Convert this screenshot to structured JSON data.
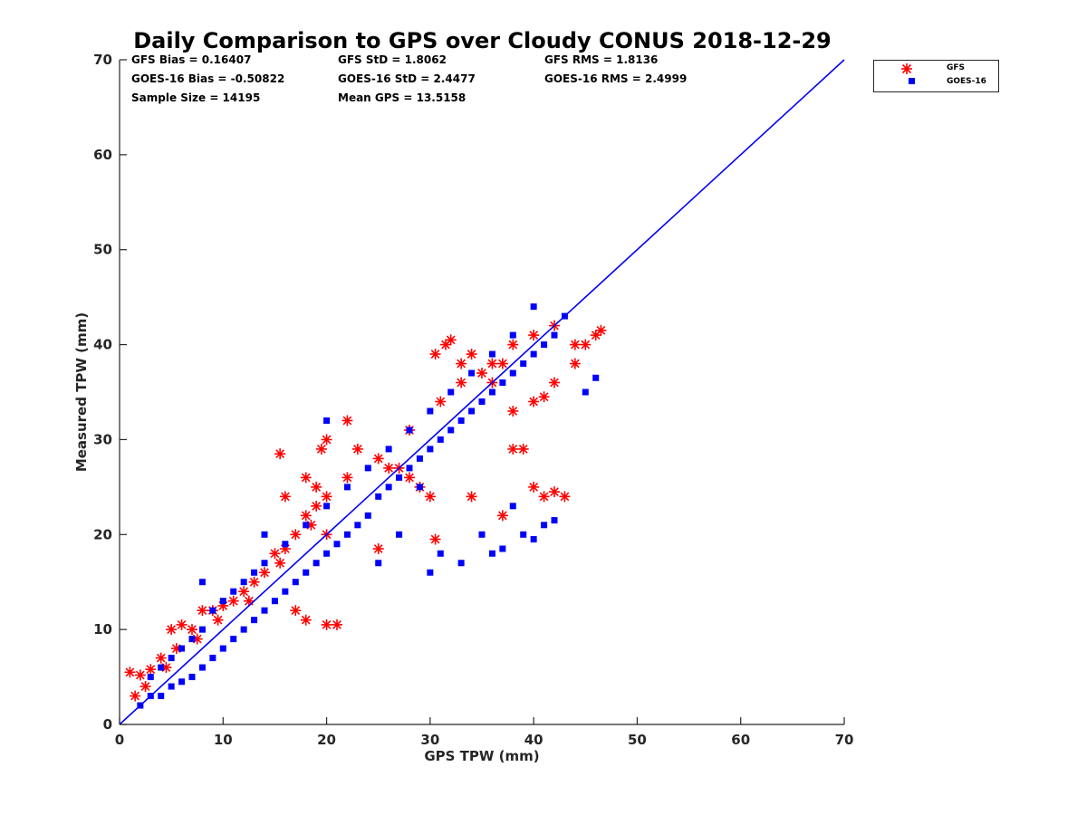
{
  "chart_data": {
    "type": "scatter",
    "title": "Daily Comparison to GPS over Cloudy CONUS 2018-12-29",
    "xlabel": "GPS TPW (mm)",
    "ylabel": "Measured TPW (mm)",
    "xlim": [
      0,
      70
    ],
    "ylim": [
      0,
      70
    ],
    "xticks": [
      "0",
      "10",
      "20",
      "30",
      "40",
      "50",
      "60",
      "70"
    ],
    "yticks": [
      "0",
      "10",
      "20",
      "30",
      "40",
      "50",
      "60",
      "70"
    ],
    "grid": false,
    "legend_position": "outside-top-right",
    "reference_line": {
      "x": [
        0,
        70
      ],
      "y": [
        0,
        70
      ],
      "color": "#0000ff"
    },
    "stats": {
      "gfs_bias": "GFS Bias = 0.16407",
      "gfs_std": "GFS StD = 1.8062",
      "gfs_rms": "GFS RMS = 1.8136",
      "goes_bias": "GOES-16 Bias = -0.50822",
      "goes_std": "GOES-16 StD = 2.4477",
      "goes_rms": "GOES-16 RMS = 2.4999",
      "sample_size": "Sample Size = 14195",
      "mean_gps": "Mean GPS = 13.5158"
    },
    "series": [
      {
        "name": "GFS",
        "marker": "asterisk",
        "color": "#ff0000",
        "x": [
          1,
          2,
          3,
          4,
          5,
          6,
          7,
          8,
          9,
          10,
          11,
          12,
          13,
          14,
          15,
          16,
          17,
          18,
          19,
          20,
          1.5,
          2.5,
          4.5,
          5.5,
          7.5,
          9.5,
          12.5,
          15.5,
          18.5,
          22,
          25,
          28,
          31,
          33,
          36,
          38,
          40,
          42,
          44,
          46,
          15.5,
          16,
          18,
          19,
          19.5,
          20,
          20,
          22,
          23,
          25,
          26,
          27,
          28,
          29,
          30,
          30.5,
          31.5,
          32,
          33,
          34,
          35,
          36,
          37,
          38,
          39,
          40,
          41,
          42,
          43,
          44,
          45,
          46.5,
          30.5,
          34,
          37,
          38,
          40,
          41,
          42,
          20,
          21,
          18,
          17
        ],
        "y": [
          5.5,
          5.2,
          5.8,
          7,
          10,
          10.5,
          10,
          12,
          12,
          12.5,
          13,
          14,
          15,
          16,
          18,
          18.5,
          20,
          22,
          23,
          24,
          3,
          4,
          6,
          8,
          9,
          11,
          13,
          17,
          21,
          26,
          28,
          31,
          34,
          36,
          38,
          40,
          41,
          42,
          40,
          41,
          28.5,
          24,
          26,
          25,
          29,
          30,
          20,
          32,
          29,
          18.5,
          27,
          27,
          26,
          25,
          24,
          39,
          40,
          40.5,
          38,
          39,
          37,
          36,
          38,
          29,
          29,
          25,
          24,
          24.5,
          24,
          38,
          40,
          41.5,
          19.5,
          24,
          22,
          33,
          34,
          34.5,
          36,
          10.5,
          10.5,
          11,
          12
        ]
      },
      {
        "name": "GOES-16",
        "marker": "square",
        "color": "#0000ff",
        "x": [
          2,
          3,
          4,
          5,
          6,
          7,
          8,
          9,
          10,
          11,
          12,
          13,
          14,
          15,
          16,
          17,
          18,
          19,
          20,
          21,
          22,
          23,
          24,
          25,
          26,
          27,
          28,
          29,
          30,
          31,
          32,
          33,
          34,
          35,
          36,
          37,
          38,
          39,
          40,
          41,
          42,
          43,
          3,
          4,
          5,
          6,
          7,
          8,
          9,
          10,
          11,
          12,
          13,
          14,
          16,
          18,
          20,
          22,
          24,
          26,
          28,
          30,
          32,
          34,
          36,
          38,
          40,
          8,
          14,
          20,
          25,
          27,
          29,
          30,
          31,
          33,
          35,
          36,
          37,
          38,
          39,
          40,
          41,
          42,
          45,
          46
        ],
        "y": [
          2,
          3,
          3,
          4,
          4.5,
          5,
          6,
          7,
          8,
          9,
          10,
          11,
          12,
          13,
          14,
          15,
          16,
          17,
          18,
          19,
          20,
          21,
          22,
          24,
          25,
          26,
          27,
          28,
          29,
          30,
          31,
          32,
          33,
          34,
          35,
          36,
          37,
          38,
          39,
          40,
          41,
          43,
          5,
          6,
          7,
          8,
          9,
          10,
          12,
          13,
          14,
          15,
          16,
          17,
          19,
          21,
          23,
          25,
          27,
          29,
          31,
          33,
          35,
          37,
          39,
          41,
          44,
          15,
          20,
          32,
          17,
          20,
          25,
          16,
          18,
          17,
          20,
          18,
          18.5,
          23,
          20,
          19.5,
          21,
          21.5,
          35,
          36.5
        ]
      }
    ]
  },
  "legend": {
    "items": [
      {
        "label": "GFS",
        "color": "#ff0000",
        "marker": "asterisk"
      },
      {
        "label": "GOES-16",
        "color": "#0000ff",
        "marker": "square"
      }
    ]
  }
}
